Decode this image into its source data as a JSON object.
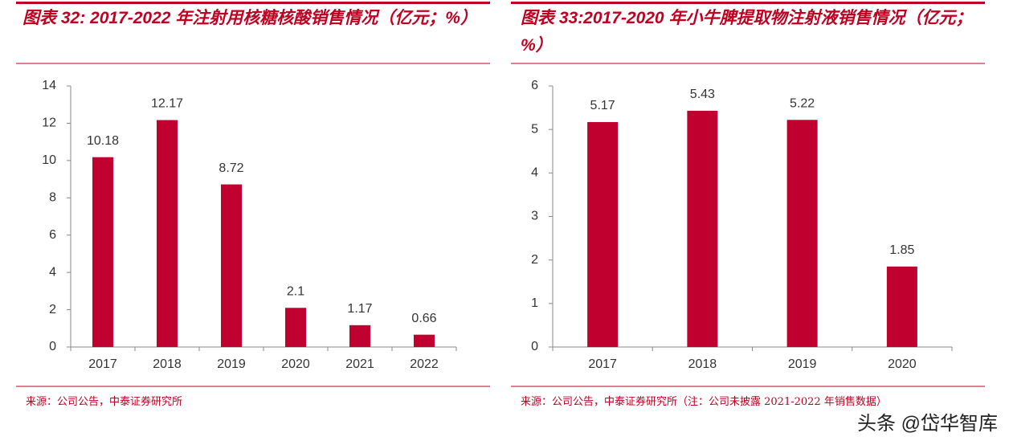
{
  "chart_data": [
    {
      "type": "bar",
      "title": "图表 32: 2017-2022 年注射用核糖核酸销售情况（亿元；%）",
      "categories": [
        "2017",
        "2018",
        "2019",
        "2020",
        "2021",
        "2022"
      ],
      "values": [
        10.18,
        12.17,
        8.72,
        2.1,
        1.17,
        0.66
      ],
      "color": "#c0002f",
      "ylim": [
        0,
        14
      ],
      "yticks": [
        0,
        2,
        4,
        6,
        8,
        10,
        12,
        14
      ],
      "source": "来源：公司公告，中泰证券研究所"
    },
    {
      "type": "bar",
      "title": "图表 33:2017-2020 年小牛脾提取物注射液销售情况（亿元；%）",
      "categories": [
        "2017",
        "2018",
        "2019",
        "2020"
      ],
      "values": [
        5.17,
        5.43,
        5.22,
        1.85
      ],
      "color": "#c0002f",
      "ylim": [
        0,
        6
      ],
      "yticks": [
        0,
        1,
        2,
        3,
        4,
        5,
        6
      ],
      "source": "来源：公司公告，中泰证券研究所（注：公司未披露 2021-2022 年销售数据）"
    }
  ],
  "watermark": "头条 @岱华智库"
}
